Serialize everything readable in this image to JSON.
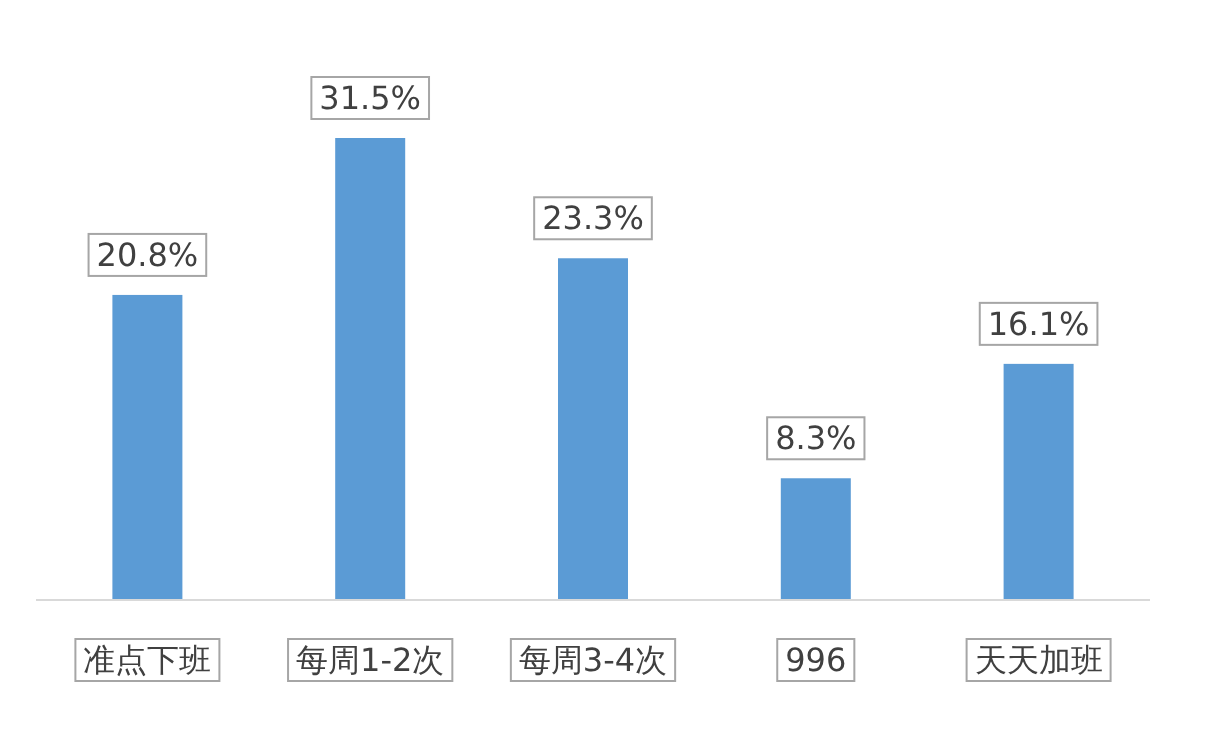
{
  "chart_data": {
    "type": "bar",
    "categories": [
      "准点下班",
      "每周1-2次",
      "每周3-4次",
      "996",
      "天天加班"
    ],
    "values": [
      20.8,
      31.5,
      23.3,
      8.3,
      16.1
    ],
    "value_labels": [
      "20.8%",
      "31.5%",
      "23.3%",
      "8.3%",
      "16.1%"
    ],
    "color": "#5b9bd5"
  }
}
